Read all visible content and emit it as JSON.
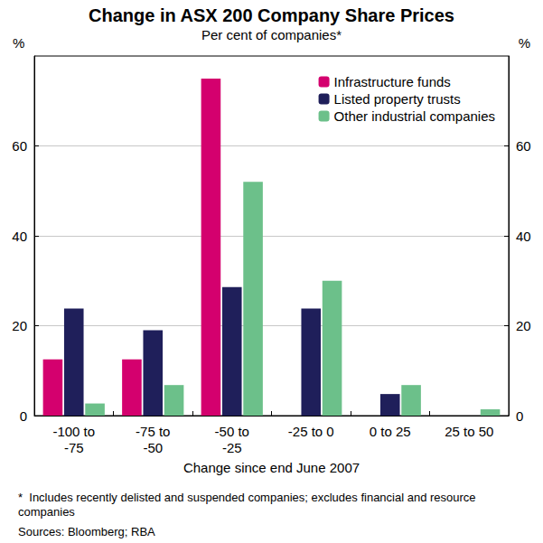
{
  "chart_data": {
    "type": "bar",
    "title": "Change in ASX 200 Company Share Prices",
    "subtitle": "Per cent of companies*",
    "xlabel": "Change since end June 2007",
    "ylabel": "%",
    "categories": [
      "-100 to\n-75",
      "-75 to\n-50",
      "-50 to\n-25",
      "-25 to 0",
      "0 to 25",
      "25 to 50"
    ],
    "series": [
      {
        "name": "Infrastructure funds",
        "color": "#d4006e",
        "values": [
          12.5,
          12.5,
          75,
          0,
          0,
          0
        ]
      },
      {
        "name": "Listed property trusts",
        "color": "#1f1f5a",
        "values": [
          23.8,
          19,
          28.6,
          23.8,
          4.8,
          0
        ]
      },
      {
        "name": "Other industrial companies",
        "color": "#6cc08a",
        "values": [
          2.7,
          6.8,
          52,
          30,
          6.8,
          1.4
        ]
      }
    ],
    "ylim": [
      0,
      80
    ],
    "yticks": [
      0,
      20,
      40,
      60
    ],
    "grid": true,
    "legend": "top-right",
    "notes": [
      "*  Includes recently delisted and suspended companies; excludes financial and resource companies",
      "Sources: Bloomberg; RBA"
    ]
  }
}
